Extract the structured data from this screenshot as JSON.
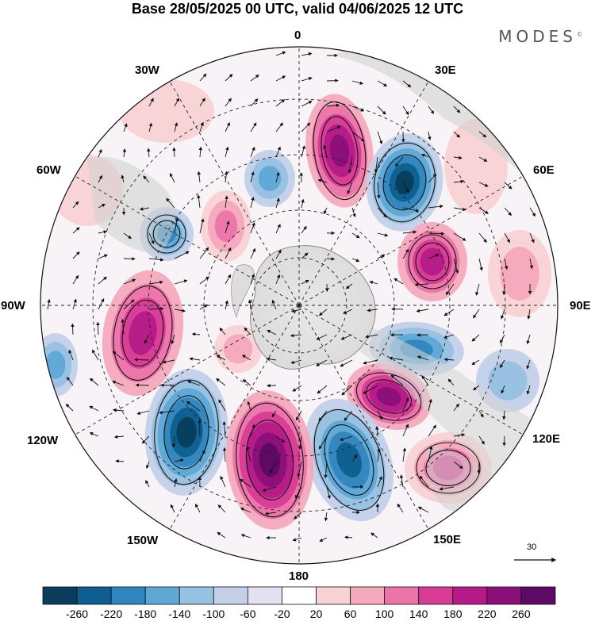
{
  "title": "Base 28/05/2025 00 UTC, valid 04/06/2025 12 UTC",
  "logo_text": "MODES",
  "logo_mark": "©",
  "longitude_labels": {
    "lon_0": "0",
    "lon_30e": "30E",
    "lon_60e": "60E",
    "lon_90e": "90E",
    "lon_120e": "120E",
    "lon_150e": "150E",
    "lon_180": "180",
    "lon_150w": "150W",
    "lon_120w": "120W",
    "lon_90w": "90W",
    "lon_60w": "60W",
    "lon_30w": "30W"
  },
  "reference_vector_label": "30",
  "colorbar": {
    "tick_labels": [
      "-260",
      "-220",
      "-180",
      "-140",
      "-100",
      "-60",
      "-20",
      "20",
      "60",
      "100",
      "140",
      "180",
      "220",
      "260"
    ],
    "colors": [
      "#0a3d5c",
      "#0e5f8f",
      "#2f86be",
      "#5ea8d6",
      "#97c1e2",
      "#c3d0e8",
      "#e4e1f0",
      "#ffffff",
      "#f8d2d4",
      "#f4a9bc",
      "#eb74a9",
      "#d93c97",
      "#b41b88",
      "#8b0f78",
      "#5c0a63"
    ],
    "extends": "both"
  }
}
